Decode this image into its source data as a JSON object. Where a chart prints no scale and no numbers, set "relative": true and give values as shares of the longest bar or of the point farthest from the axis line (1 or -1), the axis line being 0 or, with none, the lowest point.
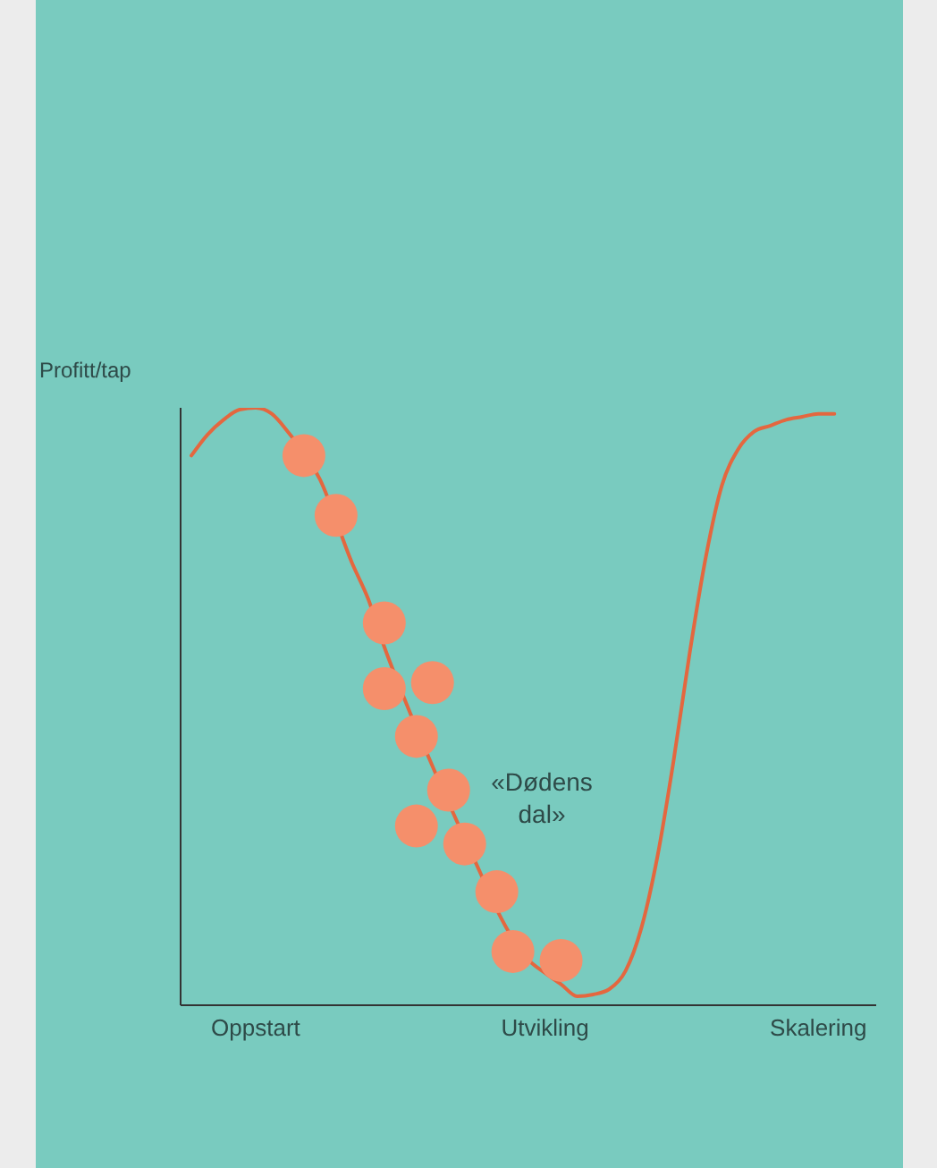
{
  "chart_data": {
    "type": "line",
    "relative": true,
    "ylabel": "Profitt/tap",
    "categories": [
      null,
      null,
      null,
      null,
      "Oppstart",
      null,
      null,
      null,
      null,
      null,
      null,
      null,
      null,
      null,
      null,
      null,
      null,
      null,
      null,
      null,
      null,
      null,
      "Utvikling",
      null,
      null,
      null,
      null,
      null,
      null,
      null,
      null,
      null,
      null,
      null,
      null,
      null,
      null,
      null,
      null,
      "Skalering",
      null
    ],
    "series": [
      {
        "color": "#e4673f",
        "marker": "none",
        "line_style": "solid",
        "values": [
          0.92,
          0.955,
          0.98,
          0.997,
          1,
          0.99,
          0.96,
          null,
          0.88,
          null,
          0.74,
          0.68,
          0.6,
          0.53,
          null,
          0.4,
          null,
          null,
          0.22,
          0.16,
          null,
          0.075,
          0.054,
          0.035,
          0.015,
          0.018,
          0.027,
          0.057,
          0.13,
          0.25,
          0.41,
          0.59,
          0.75,
          0.87,
          0.93,
          0.96,
          0.97,
          0.98,
          0.985,
          0.99,
          0.99
        ]
      },
      {
        "type": "scatter",
        "color": "#f58f6b",
        "marker": "circle",
        "values": [
          null,
          null,
          null,
          null,
          null,
          null,
          null,
          0.92,
          null,
          0.82,
          null,
          null,
          0.64,
          null,
          0.45,
          0.54,
          0.36,
          0.27,
          null,
          0.19,
          0.09,
          null,
          null,
          0.075,
          null,
          null,
          null,
          null,
          null,
          null,
          null,
          null,
          null,
          null,
          null,
          null,
          null,
          null,
          null,
          null,
          null
        ]
      },
      {
        "type": "scatter",
        "color": "#f58f6b",
        "marker": "circle",
        "values": [
          null,
          null,
          null,
          null,
          null,
          null,
          null,
          null,
          null,
          null,
          null,
          null,
          0.53,
          null,
          0.3,
          null,
          null,
          null,
          null,
          null,
          null,
          null,
          null,
          null,
          null,
          null,
          null,
          null,
          null,
          null,
          null,
          null,
          null,
          null,
          null,
          null,
          null,
          null,
          null,
          null,
          null
        ]
      }
    ],
    "annotations": [
      "«Dødens dal»"
    ],
    "grid": false,
    "legend": false
  }
}
